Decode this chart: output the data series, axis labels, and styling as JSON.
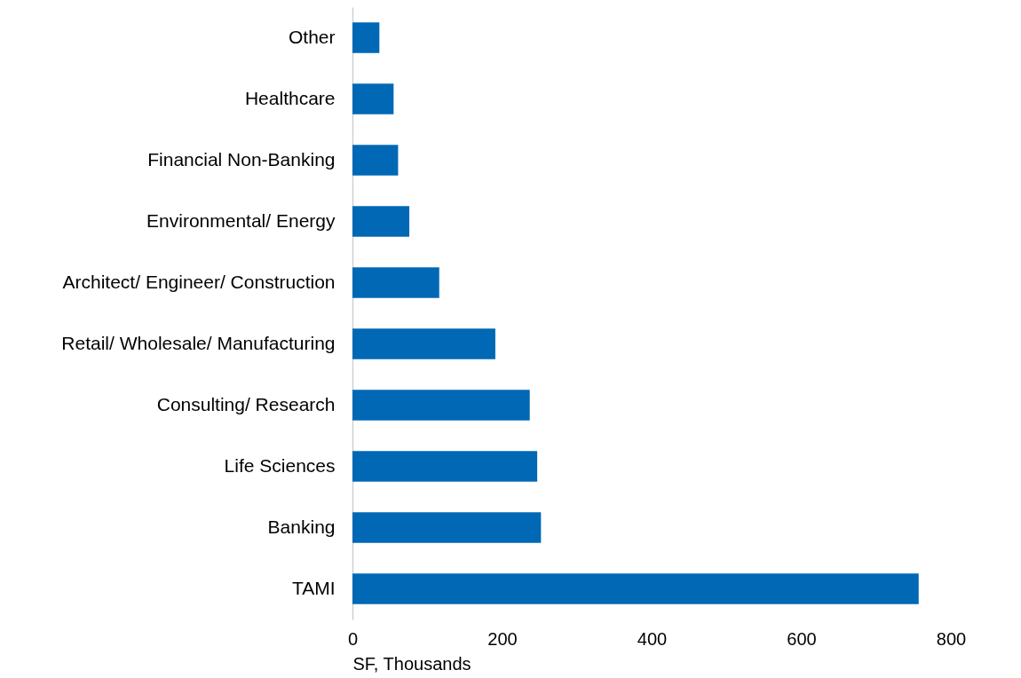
{
  "chart_data": {
    "type": "bar",
    "orientation": "horizontal",
    "categories": [
      "Other",
      "Healthcare",
      "Financial Non-Banking",
      "Environmental/ Energy",
      "Architect/ Engineer/ Construction",
      "Retail/ Wholesale/ Manufacturing",
      "Consulting/ Research",
      "Life Sciences",
      "Banking",
      "TAMI"
    ],
    "values": [
      36,
      55,
      61,
      76,
      116,
      191,
      237,
      247,
      252,
      757
    ],
    "color": "#0068b5",
    "xlabel": "SF, Thousands",
    "xlim": [
      0,
      800
    ],
    "xticks": [
      0,
      200,
      400,
      600,
      800
    ],
    "grid": false
  }
}
